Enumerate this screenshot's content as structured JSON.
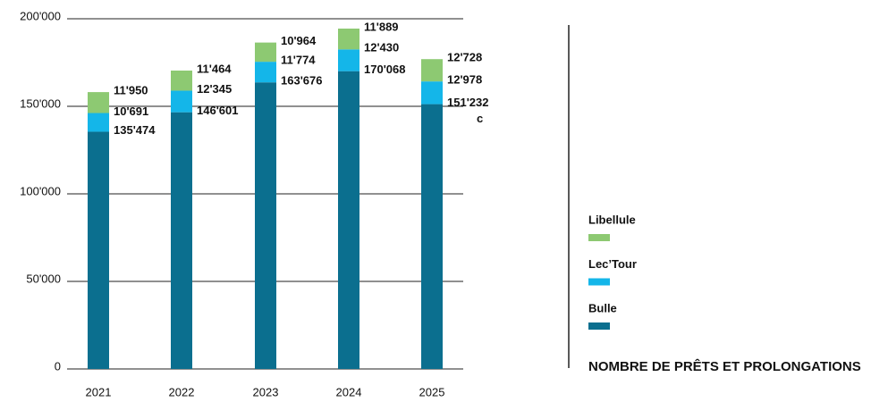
{
  "chart_data": {
    "type": "stacked_bar",
    "title": "NOMBRE DE PRÊTS ET PROLONGATIONS",
    "categories": [
      "2021",
      "2022",
      "2023",
      "2024",
      "2025"
    ],
    "series": [
      {
        "name": "Bulle",
        "color": "#0b6f8f",
        "values": [
          135474,
          146601,
          163676,
          170068,
          151232
        ],
        "value_labels": [
          "135'474",
          "146'601",
          "163'676",
          "170'068",
          "151'232"
        ]
      },
      {
        "name": "Lec’Tour",
        "color": "#14b6e9",
        "values": [
          10691,
          12345,
          11774,
          12430,
          12978
        ],
        "value_labels": [
          "10'691",
          "12'345",
          "11'774",
          "12'430",
          "12'978"
        ]
      },
      {
        "name": "Libellule",
        "color": "#8dc972",
        "values": [
          11950,
          11464,
          10964,
          11889,
          12728
        ],
        "value_labels": [
          "11'950",
          "11'464",
          "10'964",
          "11'889",
          "12'728"
        ]
      }
    ],
    "annotation": "c",
    "ylim": [
      0,
      200000
    ],
    "yticks": [
      0,
      {
        "value": 50000,
        "label": "50'000"
      },
      {
        "value": 100000,
        "label": "100'000"
      },
      {
        "value": 150000,
        "label": "150'000"
      },
      {
        "value": 200000,
        "label": "200'000"
      }
    ],
    "grid": true,
    "legend": "right"
  }
}
